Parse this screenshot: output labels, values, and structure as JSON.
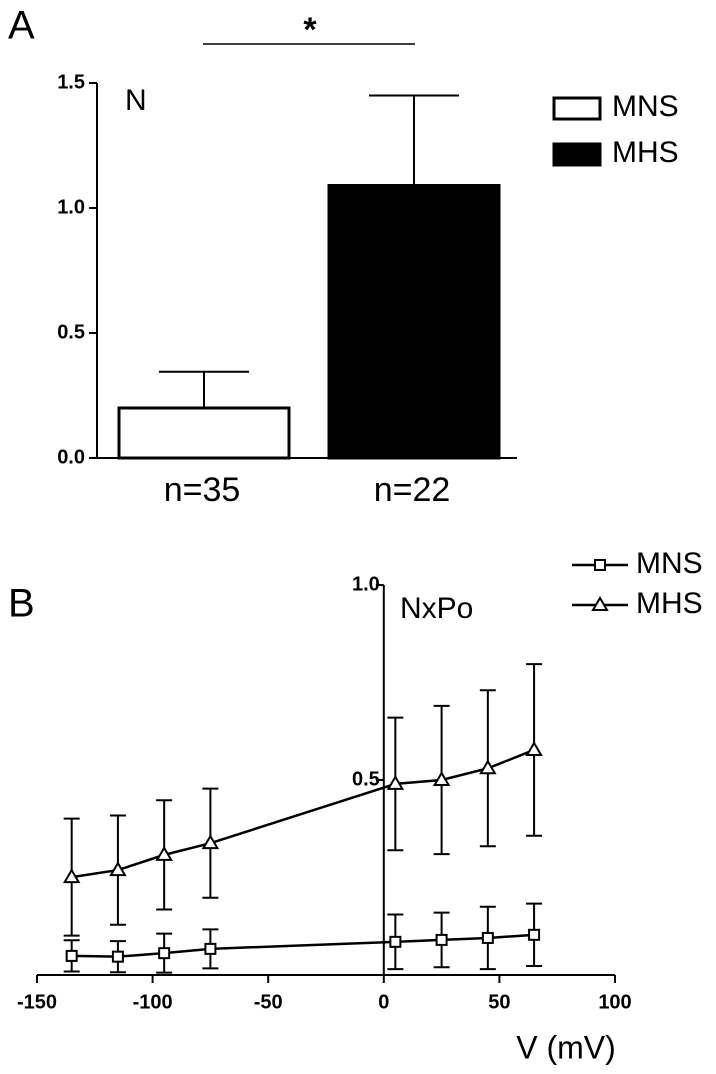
{
  "chart_data": [
    {
      "type": "bar",
      "annotations": [
        "A",
        "N",
        "*"
      ],
      "categories": [
        "n=35",
        "n=22"
      ],
      "series": [
        {
          "name": "MNS",
          "color": "#ffffff",
          "values": [
            0.2,
            null
          ],
          "errors": [
            0.145,
            null
          ]
        },
        {
          "name": "MHS",
          "color": "#000000",
          "values": [
            null,
            1.09
          ],
          "errors": [
            null,
            0.36
          ]
        }
      ],
      "ylim": [
        0,
        1.5
      ],
      "yticks": [
        {
          "value": 0,
          "label": "0.0"
        },
        0.5,
        {
          "value": 1,
          "label": "1.0"
        },
        1.5
      ]
    },
    {
      "type": "line",
      "annotations": [
        "B",
        "NxPo"
      ],
      "x_label": "V (mV)",
      "x": [
        -135,
        -115,
        -95,
        -75,
        5,
        25,
        45,
        65
      ],
      "series": [
        {
          "name": "MNS",
          "color": "#000000",
          "marker": "square",
          "values": [
            0.049,
            0.047,
            0.056,
            0.067,
            0.085,
            0.09,
            0.095,
            0.103
          ],
          "errors": [
            0.04,
            0.04,
            0.05,
            0.05,
            0.07,
            0.07,
            0.08,
            0.08
          ]
        },
        {
          "name": "MHS",
          "color": "#000000",
          "marker": "triangle",
          "values": [
            0.251,
            0.269,
            0.308,
            0.338,
            0.49,
            0.5,
            0.53,
            0.577
          ],
          "errors": [
            0.15,
            0.14,
            0.14,
            0.14,
            0.17,
            0.19,
            0.2,
            0.22
          ]
        }
      ],
      "xlim": [
        -150,
        100
      ],
      "xticks": [
        -150,
        -100,
        -50,
        0,
        50,
        100
      ],
      "ylim": [
        0,
        1
      ],
      "yticks": [
        0.5,
        {
          "value": 1,
          "label": "1.0"
        }
      ]
    }
  ]
}
